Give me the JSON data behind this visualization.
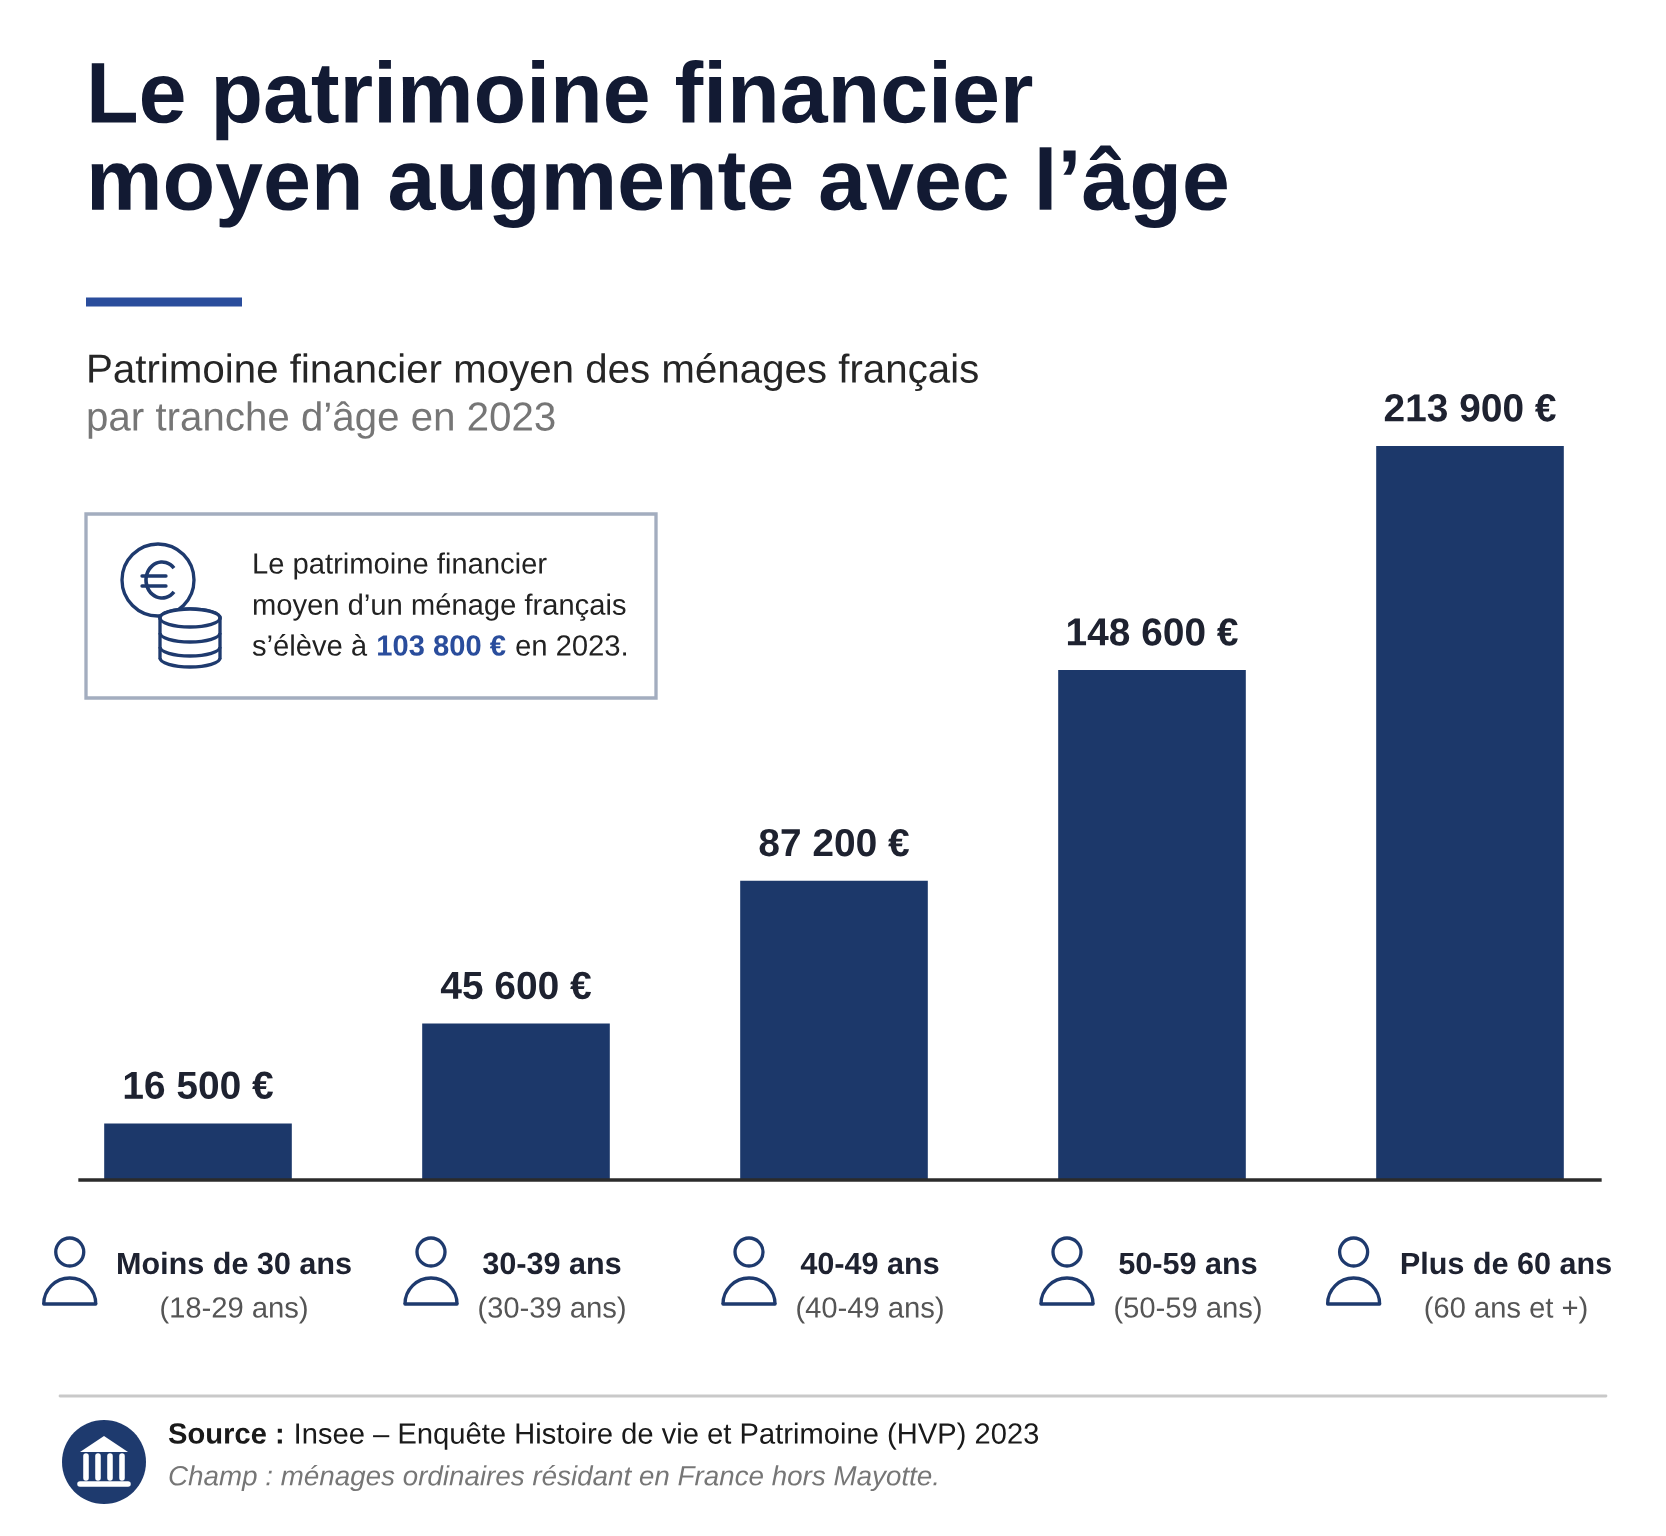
{
  "chart_data": {
    "type": "bar",
    "title": "Le patrimoine financier\nmoyen augmente avec l’âge",
    "subtitle": "Patrimoine financier moyen des ménages français\npar tranche d’âge en 2023",
    "categories": [
      "Moins de 30 ans\n(18-29 ans)",
      "30-39 ans\n(30-39 ans)",
      "40-49 ans\n(40-49 ans)",
      "50-59 ans\n(50-59 ans)",
      "Plus de 60 ans\n(60 ans et +)"
    ],
    "values": [
      16500,
      45600,
      87200,
      148600,
      213900
    ],
    "color": "#1c386a",
    "value_labels": [
      "16 500 €",
      "45 600 €",
      "87 200 €",
      "148 600 €",
      "213 900 €"
    ],
    "tick_labels": "x",
    "annotations": [
      "Le patrimoine financier\nmoyen d’un ménage français\ns’élève à 103 800 € en 2023.",
      "Source : Insee – Enquête Histoire de vie et Patrimoine (HVP) 2023",
      "Champ : ménages ordinaires résidant en France hors Mayotte."
    ]
  }
}
